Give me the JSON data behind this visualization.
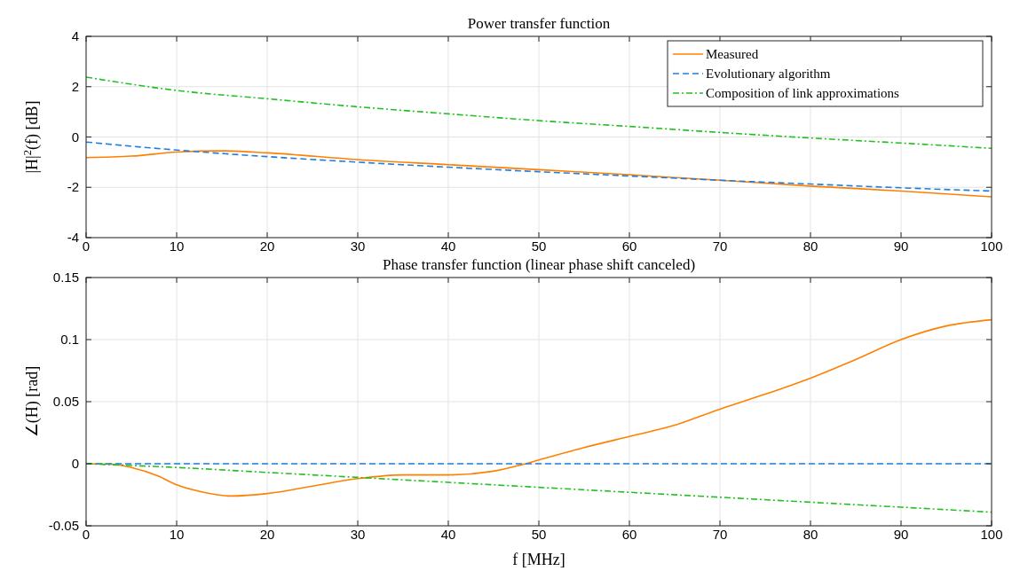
{
  "chart_data": [
    {
      "type": "line",
      "title": "Power transfer function",
      "ylabel": "|H|$^{2}$(f) [dB]",
      "xlim": [
        0,
        100
      ],
      "xticks": [
        0,
        10,
        20,
        30,
        40,
        50,
        60,
        70,
        80,
        90,
        100
      ],
      "ylim": [
        -4,
        4
      ],
      "yticks": [
        -4,
        -2,
        0,
        2,
        4
      ],
      "grid": true,
      "legend": "top right",
      "series": [
        {
          "name": "Measured",
          "color": "#ff8000",
          "line_style": "solid",
          "x": [
            0,
            5,
            10,
            15,
            20,
            30,
            40,
            50,
            60,
            70,
            80,
            90,
            100
          ],
          "values": [
            -0.82,
            -0.76,
            -0.6,
            -0.55,
            -0.63,
            -0.9,
            -1.1,
            -1.3,
            -1.5,
            -1.72,
            -1.95,
            -2.15,
            -2.38
          ]
        },
        {
          "name": "Evolutionary algorithm",
          "color": "#1f7fe0",
          "line_style": "dashed",
          "x": [
            0,
            10,
            20,
            30,
            40,
            50,
            60,
            70,
            80,
            90,
            100
          ],
          "values": [
            -0.2,
            -0.52,
            -0.78,
            -1.0,
            -1.2,
            -1.38,
            -1.55,
            -1.72,
            -1.87,
            -2.02,
            -2.15
          ]
        },
        {
          "name": "Composition of link approximations",
          "color": "#22c022",
          "line_style": "dashdot",
          "x": [
            0,
            10,
            20,
            30,
            40,
            50,
            60,
            70,
            80,
            90,
            100
          ],
          "values": [
            2.38,
            1.85,
            1.52,
            1.2,
            0.92,
            0.65,
            0.42,
            0.18,
            -0.04,
            -0.24,
            -0.45
          ]
        }
      ]
    },
    {
      "type": "line",
      "title": "Phase transfer function (linear phase shift canceled)",
      "xlabel": "f [MHz]",
      "ylabel": "∠(H) [rad]",
      "xlim": [
        0,
        100
      ],
      "xticks": [
        0,
        10,
        20,
        30,
        40,
        50,
        60,
        70,
        80,
        90,
        100
      ],
      "ylim": [
        -0.05,
        0.15
      ],
      "yticks": [
        -0.05,
        0,
        0.05,
        0.1,
        0.15
      ],
      "grid": true,
      "series": [
        {
          "color": "#ff8000",
          "line_style": "solid",
          "x": [
            0,
            3,
            5,
            8,
            10,
            13,
            16,
            20,
            25,
            30,
            35,
            40,
            45,
            48,
            50,
            55,
            60,
            65,
            70,
            75,
            80,
            85,
            90,
            95,
            100
          ],
          "values": [
            0,
            -0.0005,
            -0.003,
            -0.01,
            -0.017,
            -0.023,
            -0.026,
            -0.024,
            -0.018,
            -0.012,
            -0.009,
            -0.009,
            -0.006,
            -0.001,
            0.003,
            0.013,
            0.022,
            0.031,
            0.044,
            0.056,
            0.069,
            0.084,
            0.1,
            0.111,
            0.116
          ]
        },
        {
          "color": "#1f7fe0",
          "line_style": "dashed",
          "x": [
            0,
            100
          ],
          "values": [
            0,
            0
          ]
        },
        {
          "color": "#22c022",
          "line_style": "dashdot",
          "x": [
            0,
            10,
            20,
            30,
            40,
            50,
            60,
            70,
            80,
            90,
            100
          ],
          "values": [
            0,
            -0.003,
            -0.007,
            -0.011,
            -0.015,
            -0.019,
            -0.023,
            -0.027,
            -0.031,
            -0.035,
            -0.039
          ]
        }
      ]
    }
  ]
}
